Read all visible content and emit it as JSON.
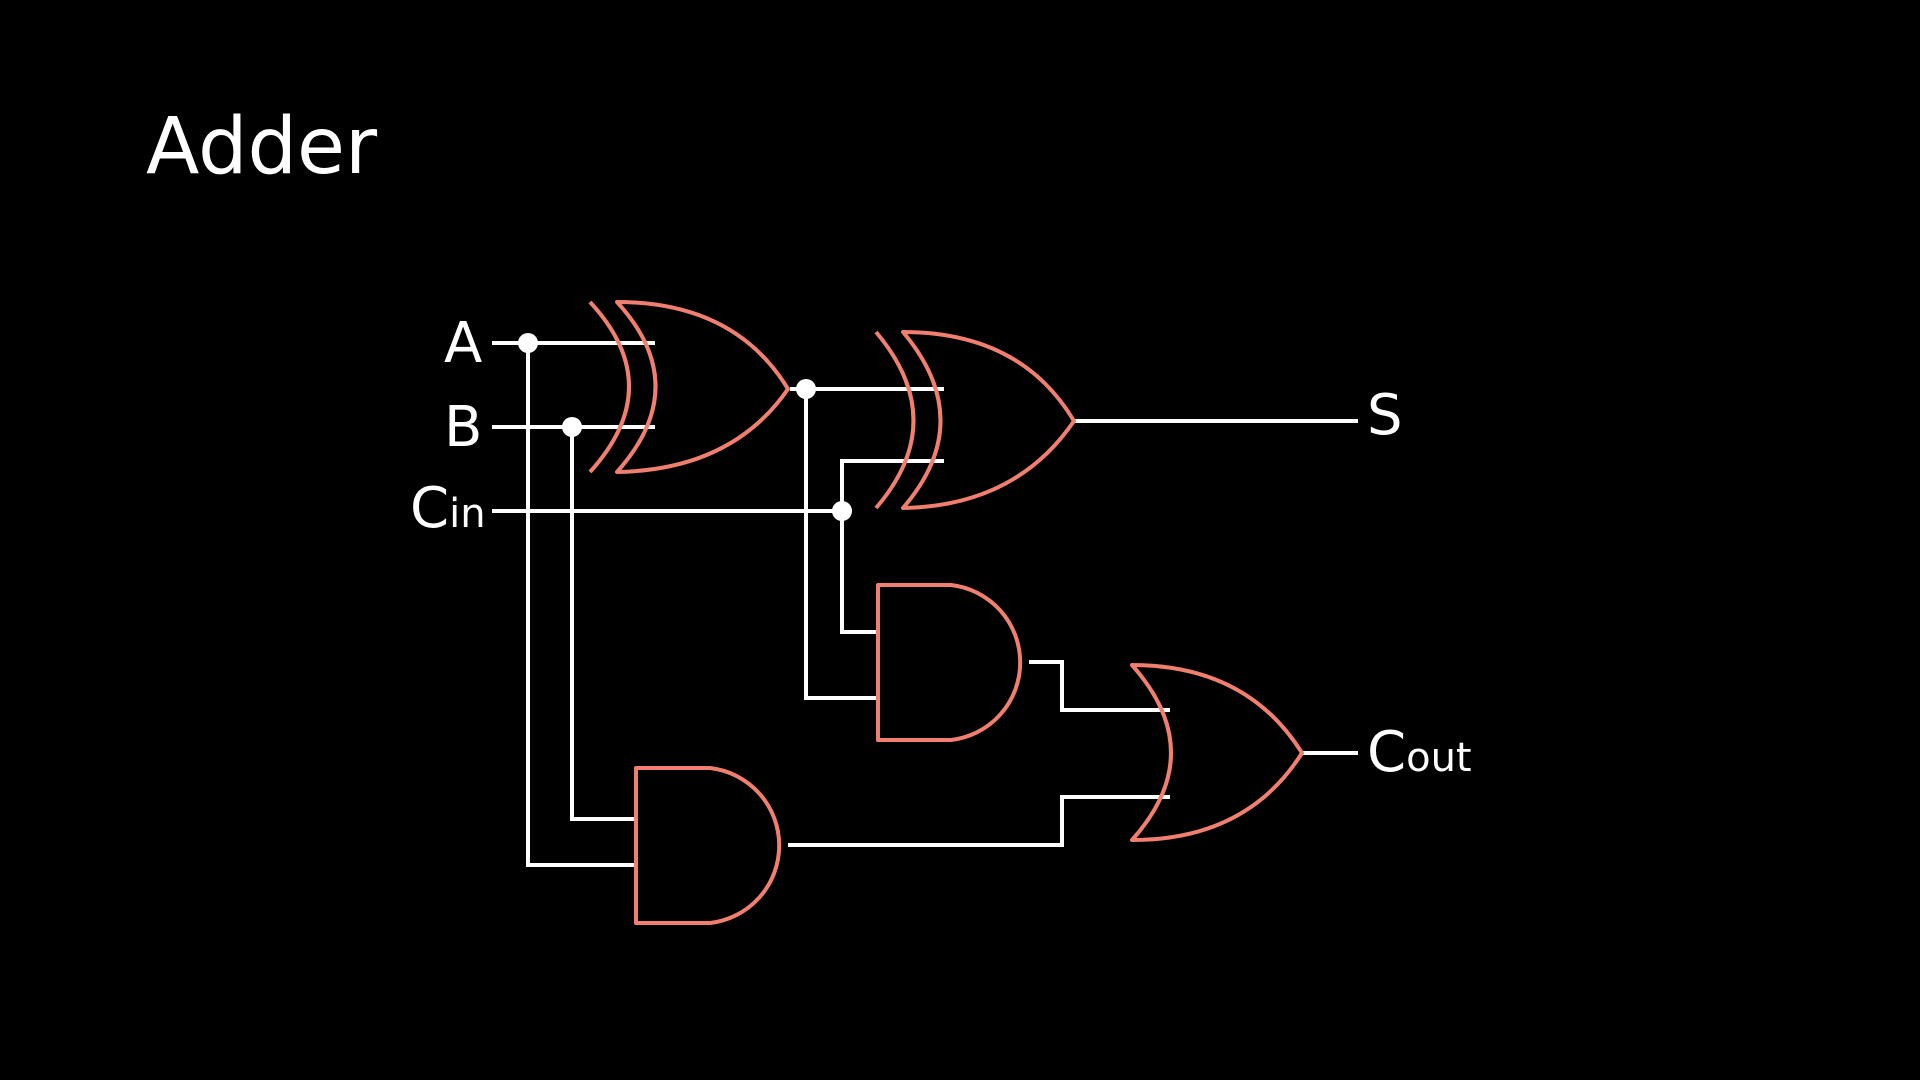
{
  "slide": {
    "title": "Adder"
  },
  "diagram": {
    "inputs": {
      "a": {
        "label": "A"
      },
      "b": {
        "label": "B"
      },
      "cin": {
        "label": "C",
        "subscript": "in"
      }
    },
    "outputs": {
      "sum": {
        "label": "S"
      },
      "cout": {
        "label": "C",
        "subscript": "out"
      }
    },
    "gates": [
      "xor",
      "xor",
      "and",
      "and",
      "or"
    ],
    "colors": {
      "background": "#000000",
      "wire": "#ffffff",
      "gate": "#f07f6f"
    }
  }
}
